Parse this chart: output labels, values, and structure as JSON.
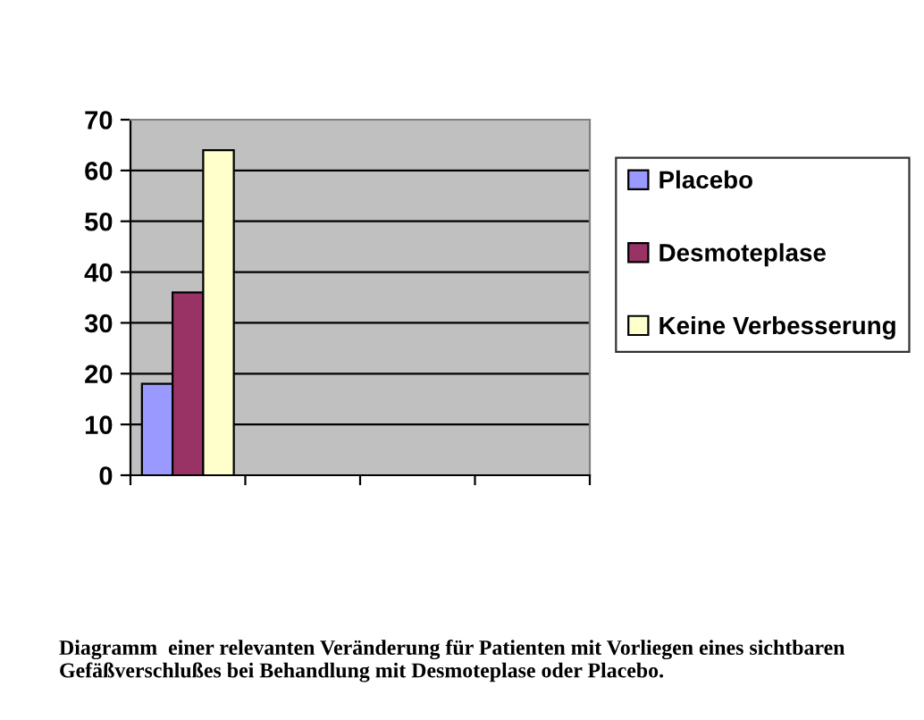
{
  "chart_data": {
    "type": "bar",
    "categories": [
      null,
      null,
      null,
      null
    ],
    "series": [
      {
        "name": "Placebo",
        "color": "#9999ff",
        "values": [
          18,
          null,
          null,
          null
        ]
      },
      {
        "name": "Desmoteplase",
        "color": "#993366",
        "values": [
          36,
          null,
          null,
          null
        ]
      },
      {
        "name": "Keine Verbesserung",
        "color": "#ffffcc",
        "values": [
          64,
          null,
          null,
          null
        ]
      }
    ],
    "ylim": [
      0,
      70
    ],
    "yticks": [
      0,
      10,
      20,
      30,
      40,
      50,
      60,
      70
    ],
    "grid": "y",
    "legend": "right",
    "annotations": [
      "Diagramm  einer relevanten Veränderung für Patienten mit Vorliegen eines sichtbaren Gefäßverschlußes bei Behandlung mit Desmoteplase oder Placebo."
    ]
  }
}
